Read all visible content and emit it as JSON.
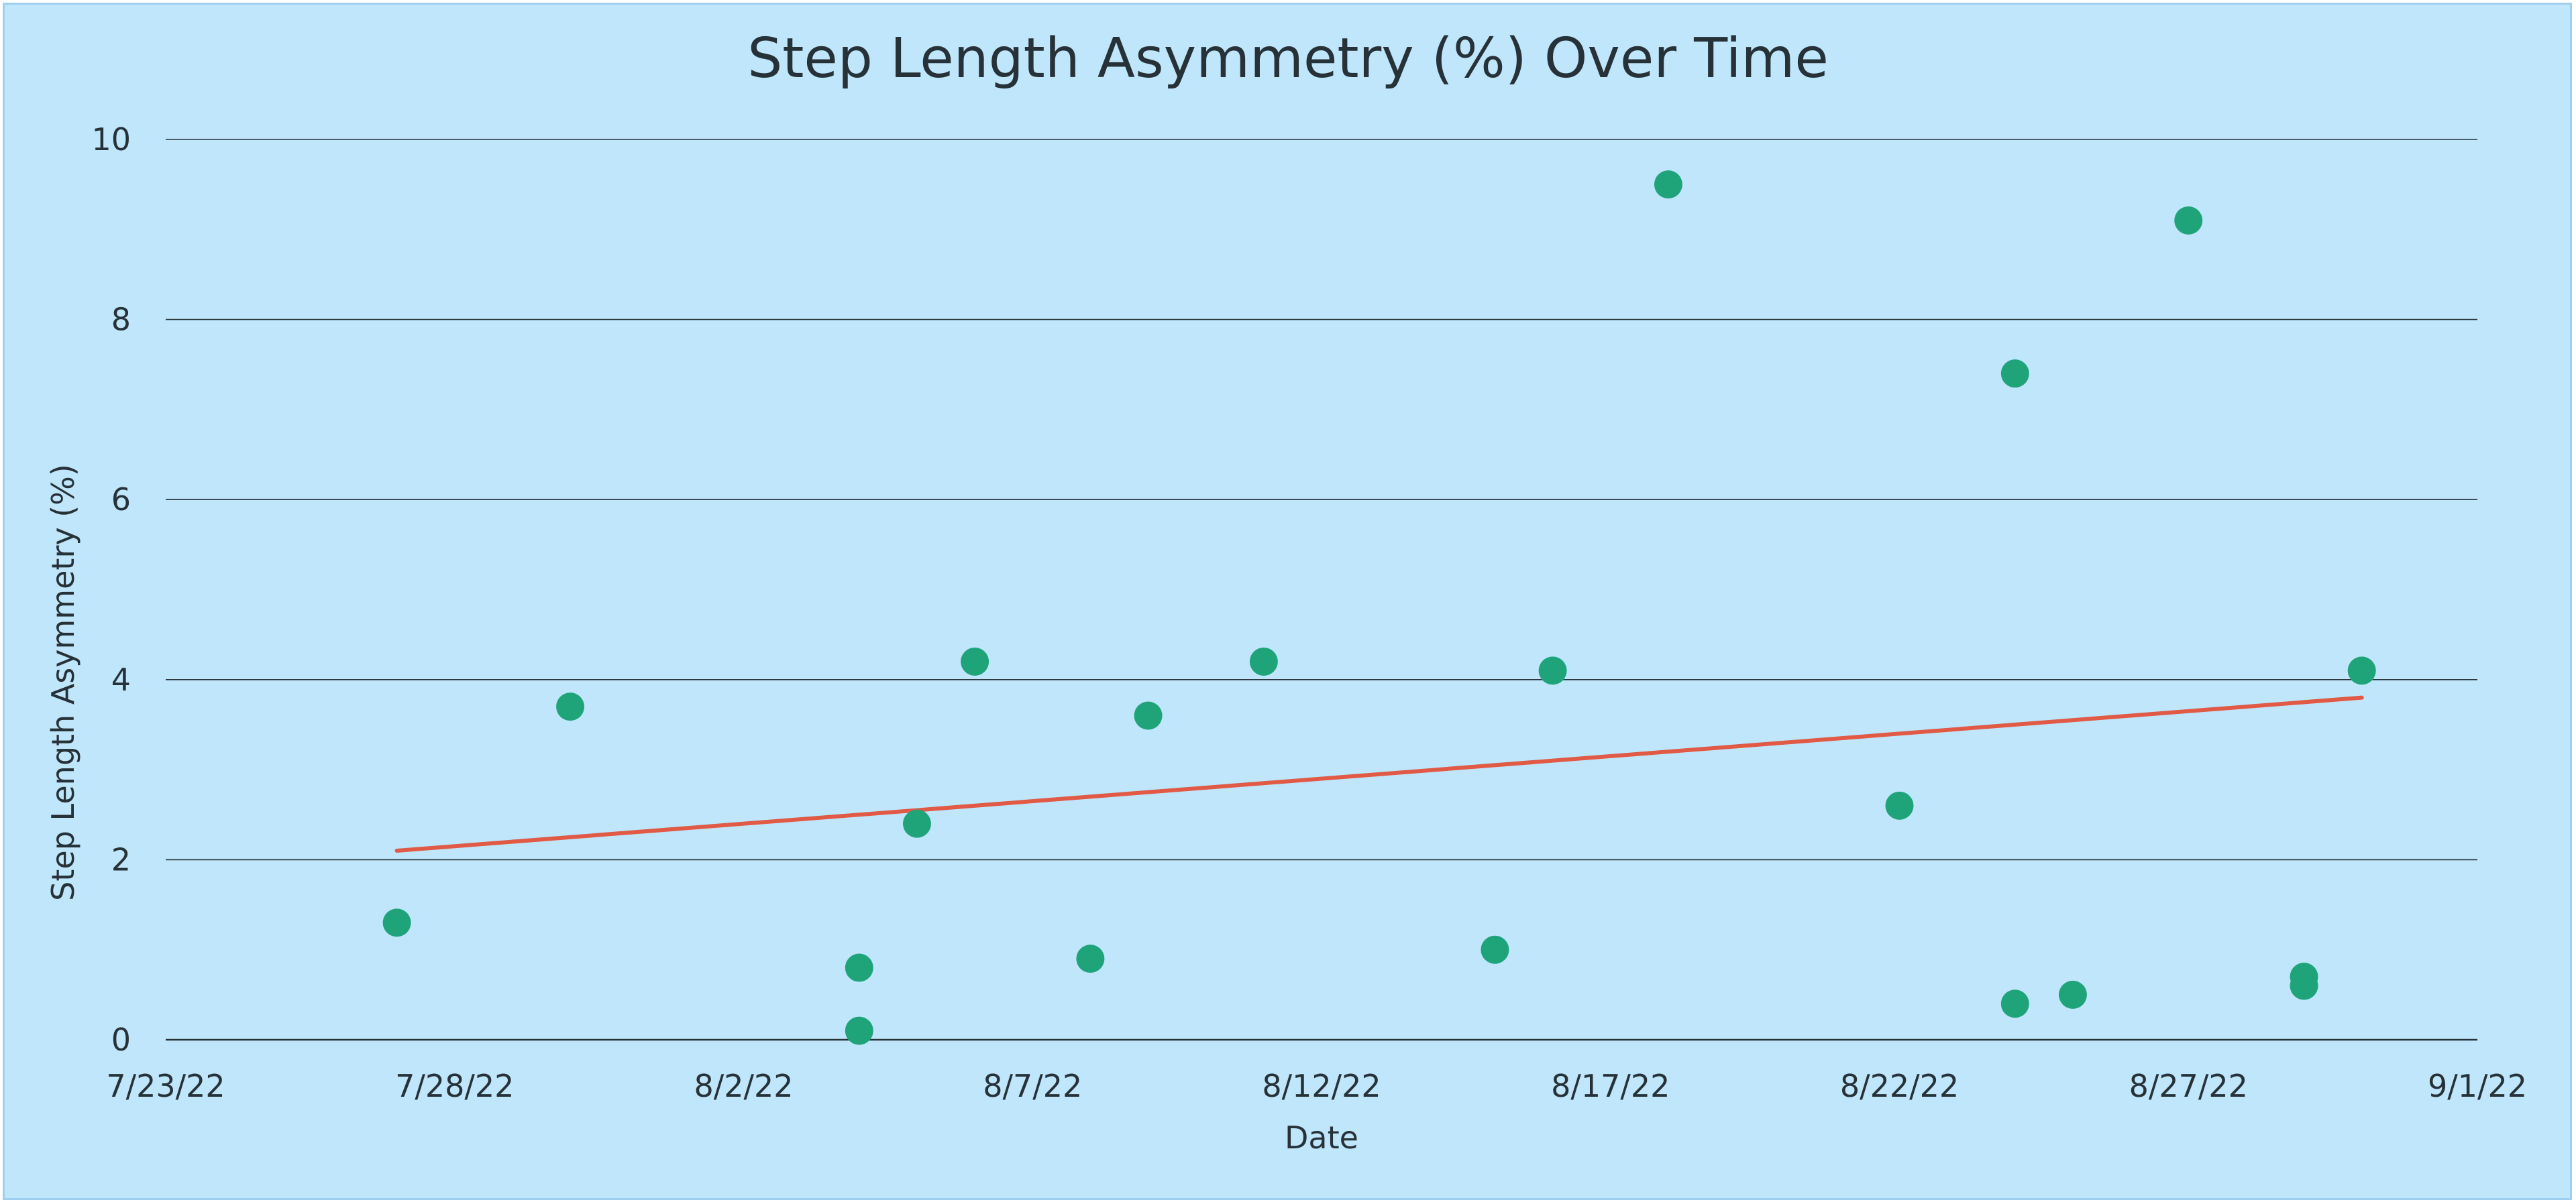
{
  "chart_data": {
    "type": "scatter",
    "title": "Step Length Asymmetry (%) Over Time",
    "xlabel": "Date",
    "ylabel": "Step Length Asymmetry (%)",
    "xlim": [
      "7/23/22",
      "9/1/22"
    ],
    "ylim": [
      0,
      10
    ],
    "x_tick_labels": [
      "7/23/22",
      "7/28/22",
      "8/2/22",
      "8/7/22",
      "8/12/22",
      "8/17/22",
      "8/22/22",
      "8/27/22",
      "9/1/22"
    ],
    "y_tick_labels": [
      "0",
      "2",
      "4",
      "6",
      "8",
      "10"
    ],
    "y_ticks": [
      0,
      2,
      4,
      6,
      8,
      10
    ],
    "grid": "horizontal",
    "colors": {
      "point": "#1fa47a",
      "trendline": "#e05a45",
      "background": "#c0e6fc",
      "gridline": "#263238"
    },
    "points": [
      {
        "x": "7/27/22",
        "y": 1.3
      },
      {
        "x": "7/30/22",
        "y": 3.7
      },
      {
        "x": "8/4/22",
        "y": 0.8
      },
      {
        "x": "8/4/22",
        "y": 0.1
      },
      {
        "x": "8/5/22",
        "y": 2.4
      },
      {
        "x": "8/6/22",
        "y": 4.2
      },
      {
        "x": "8/8/22",
        "y": 0.9
      },
      {
        "x": "8/9/22",
        "y": 3.6
      },
      {
        "x": "8/11/22",
        "y": 4.2
      },
      {
        "x": "8/15/22",
        "y": 1.0
      },
      {
        "x": "8/16/22",
        "y": 4.1
      },
      {
        "x": "8/18/22",
        "y": 9.5
      },
      {
        "x": "8/22/22",
        "y": 2.6
      },
      {
        "x": "8/24/22",
        "y": 7.4
      },
      {
        "x": "8/24/22",
        "y": 0.4
      },
      {
        "x": "8/25/22",
        "y": 0.5
      },
      {
        "x": "8/27/22",
        "y": 9.1
      },
      {
        "x": "8/29/22",
        "y": 0.7
      },
      {
        "x": "8/29/22",
        "y": 0.6
      },
      {
        "x": "8/30/22",
        "y": 4.1
      }
    ],
    "trendline": {
      "type": "linear",
      "start": {
        "x": "7/27/22",
        "y": 2.1
      },
      "end": {
        "x": "8/30/22",
        "y": 3.8
      }
    }
  }
}
